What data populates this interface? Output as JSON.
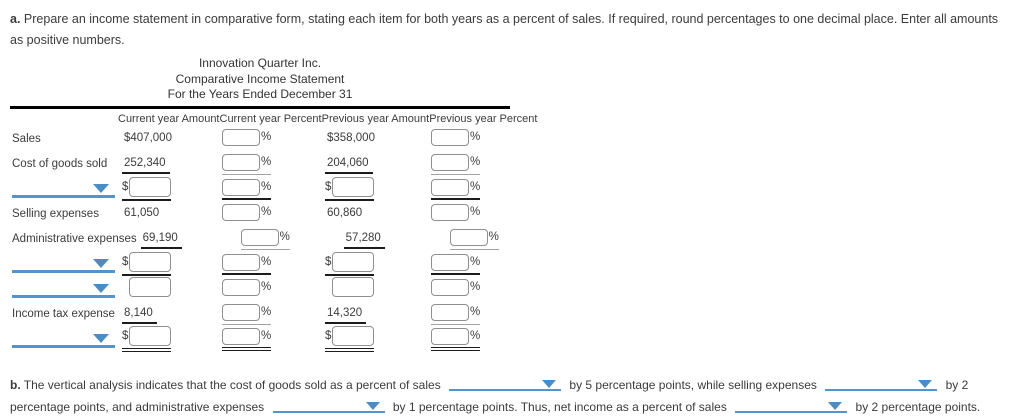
{
  "part_a": {
    "label": "a.",
    "text": "Prepare an income statement in comparative form, stating each item for both years as a percent of sales. If required, round percentages to one decimal place. Enter all amounts as positive numbers."
  },
  "statement": {
    "company": "Innovation Quarter Inc.",
    "report_title": "Comparative Income Statement",
    "period": "For the Years Ended December 31",
    "columns": [
      "Current year Amount",
      "Current year Percent",
      "Previous year Amount",
      "Previous year Percent"
    ],
    "symbols": {
      "dollar": "$",
      "percent": "%"
    },
    "rows": [
      {
        "label": "Sales",
        "cur_amount": "$407,000",
        "prev_amount": "$358,000"
      },
      {
        "label": "Cost of goods sold",
        "cur_amount": "252,340",
        "prev_amount": "204,060"
      },
      {
        "label": "",
        "cur_amount": "",
        "prev_amount": ""
      },
      {
        "label": "Selling expenses",
        "cur_amount": "61,050",
        "prev_amount": "60,860"
      },
      {
        "label": "Administrative expenses",
        "cur_amount": "69,190",
        "prev_amount": "57,280"
      },
      {
        "label": "",
        "cur_amount": "",
        "prev_amount": ""
      },
      {
        "label": "",
        "cur_amount": "",
        "prev_amount": ""
      },
      {
        "label": "Income tax expense",
        "cur_amount": "8,140",
        "prev_amount": "14,320"
      },
      {
        "label": "",
        "cur_amount": "",
        "prev_amount": ""
      }
    ]
  },
  "part_b": {
    "label": "b.",
    "segment_1": "The vertical analysis indicates that the cost of goods sold as a percent of sales",
    "segment_2": "by 5 percentage points, while selling expenses",
    "segment_3": "by 2 percentage points, and administrative expenses",
    "segment_4": "by 1 percentage points. Thus, net income as a percent of sales",
    "segment_5": "by 2 percentage points."
  },
  "colors": {
    "accent_blue": "#4a8cc4",
    "dropdown_underline": "#5294cb",
    "rule_dark": "#1c1c1c",
    "rule_gray": "#a3a3a3",
    "input_border": "#8f8f8f",
    "text": "#3b3b3b"
  }
}
